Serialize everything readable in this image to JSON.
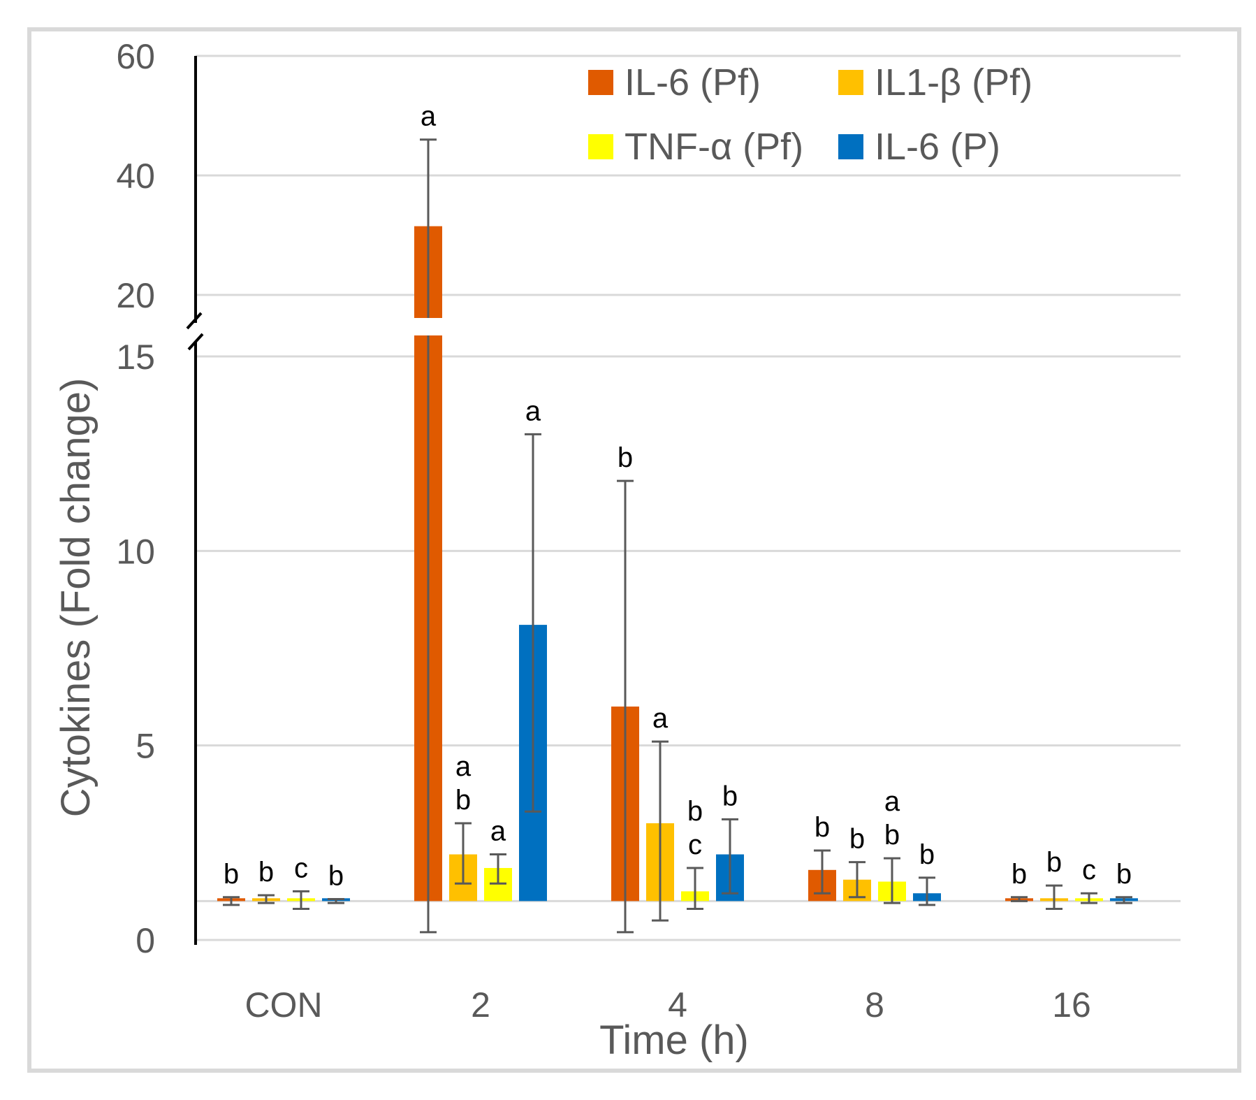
{
  "chart_data": {
    "type": "bar",
    "title": "",
    "xlabel": "Time (h)",
    "ylabel": "Cytokines (Fold change)",
    "categories": [
      "CON",
      "2",
      "4",
      "8",
      "16"
    ],
    "y_axis_break": {
      "lower_range": [
        0,
        15
      ],
      "upper_range": [
        15,
        60
      ]
    },
    "y_ticks_lower": [
      0,
      5,
      10,
      15
    ],
    "y_ticks_upper": [
      20,
      40,
      60
    ],
    "grid": true,
    "legend_position": "top-right",
    "series": [
      {
        "name": "IL-6 (Pf)",
        "color": "#E05A00",
        "values": [
          1.0,
          31.5,
          6.0,
          1.8,
          1.05
        ],
        "err_low": [
          0.9,
          0.2,
          0.2,
          1.2,
          1.0
        ],
        "err_high": [
          1.1,
          46.0,
          11.8,
          2.3,
          1.1
        ],
        "labels": [
          [
            "b"
          ],
          [
            "a"
          ],
          [
            "b"
          ],
          [
            "b"
          ],
          [
            "b"
          ]
        ]
      },
      {
        "name": "IL1-β (Pf)",
        "color": "#FFC000",
        "values": [
          1.05,
          2.2,
          3.0,
          1.55,
          1.0
        ],
        "err_low": [
          0.95,
          1.45,
          0.5,
          1.1,
          0.8
        ],
        "err_high": [
          1.15,
          3.0,
          5.1,
          2.0,
          1.4
        ],
        "labels": [
          [
            "b"
          ],
          [
            "a",
            "b"
          ],
          [
            "a"
          ],
          [
            "b"
          ],
          [
            "b"
          ]
        ]
      },
      {
        "name": "TNF-α (Pf)",
        "color": "#FFFF00",
        "values": [
          1.0,
          1.85,
          1.25,
          1.5,
          1.05
        ],
        "err_low": [
          0.8,
          1.45,
          0.8,
          0.95,
          0.95
        ],
        "err_high": [
          1.25,
          2.2,
          1.85,
          2.1,
          1.2
        ],
        "labels": [
          [
            "c"
          ],
          [
            "a"
          ],
          [
            "b",
            "c"
          ],
          [
            "a",
            "b"
          ],
          [
            "c"
          ]
        ]
      },
      {
        "name": "IL-6 (P)",
        "color": "#0070C0",
        "values": [
          1.0,
          8.1,
          2.2,
          1.2,
          1.05
        ],
        "err_low": [
          0.95,
          3.3,
          1.2,
          0.9,
          0.95
        ],
        "err_high": [
          1.05,
          13.0,
          3.1,
          1.6,
          1.1
        ],
        "labels": [
          [
            "b"
          ],
          [
            "a"
          ],
          [
            "b"
          ],
          [
            "b"
          ],
          [
            "b"
          ]
        ]
      }
    ]
  }
}
